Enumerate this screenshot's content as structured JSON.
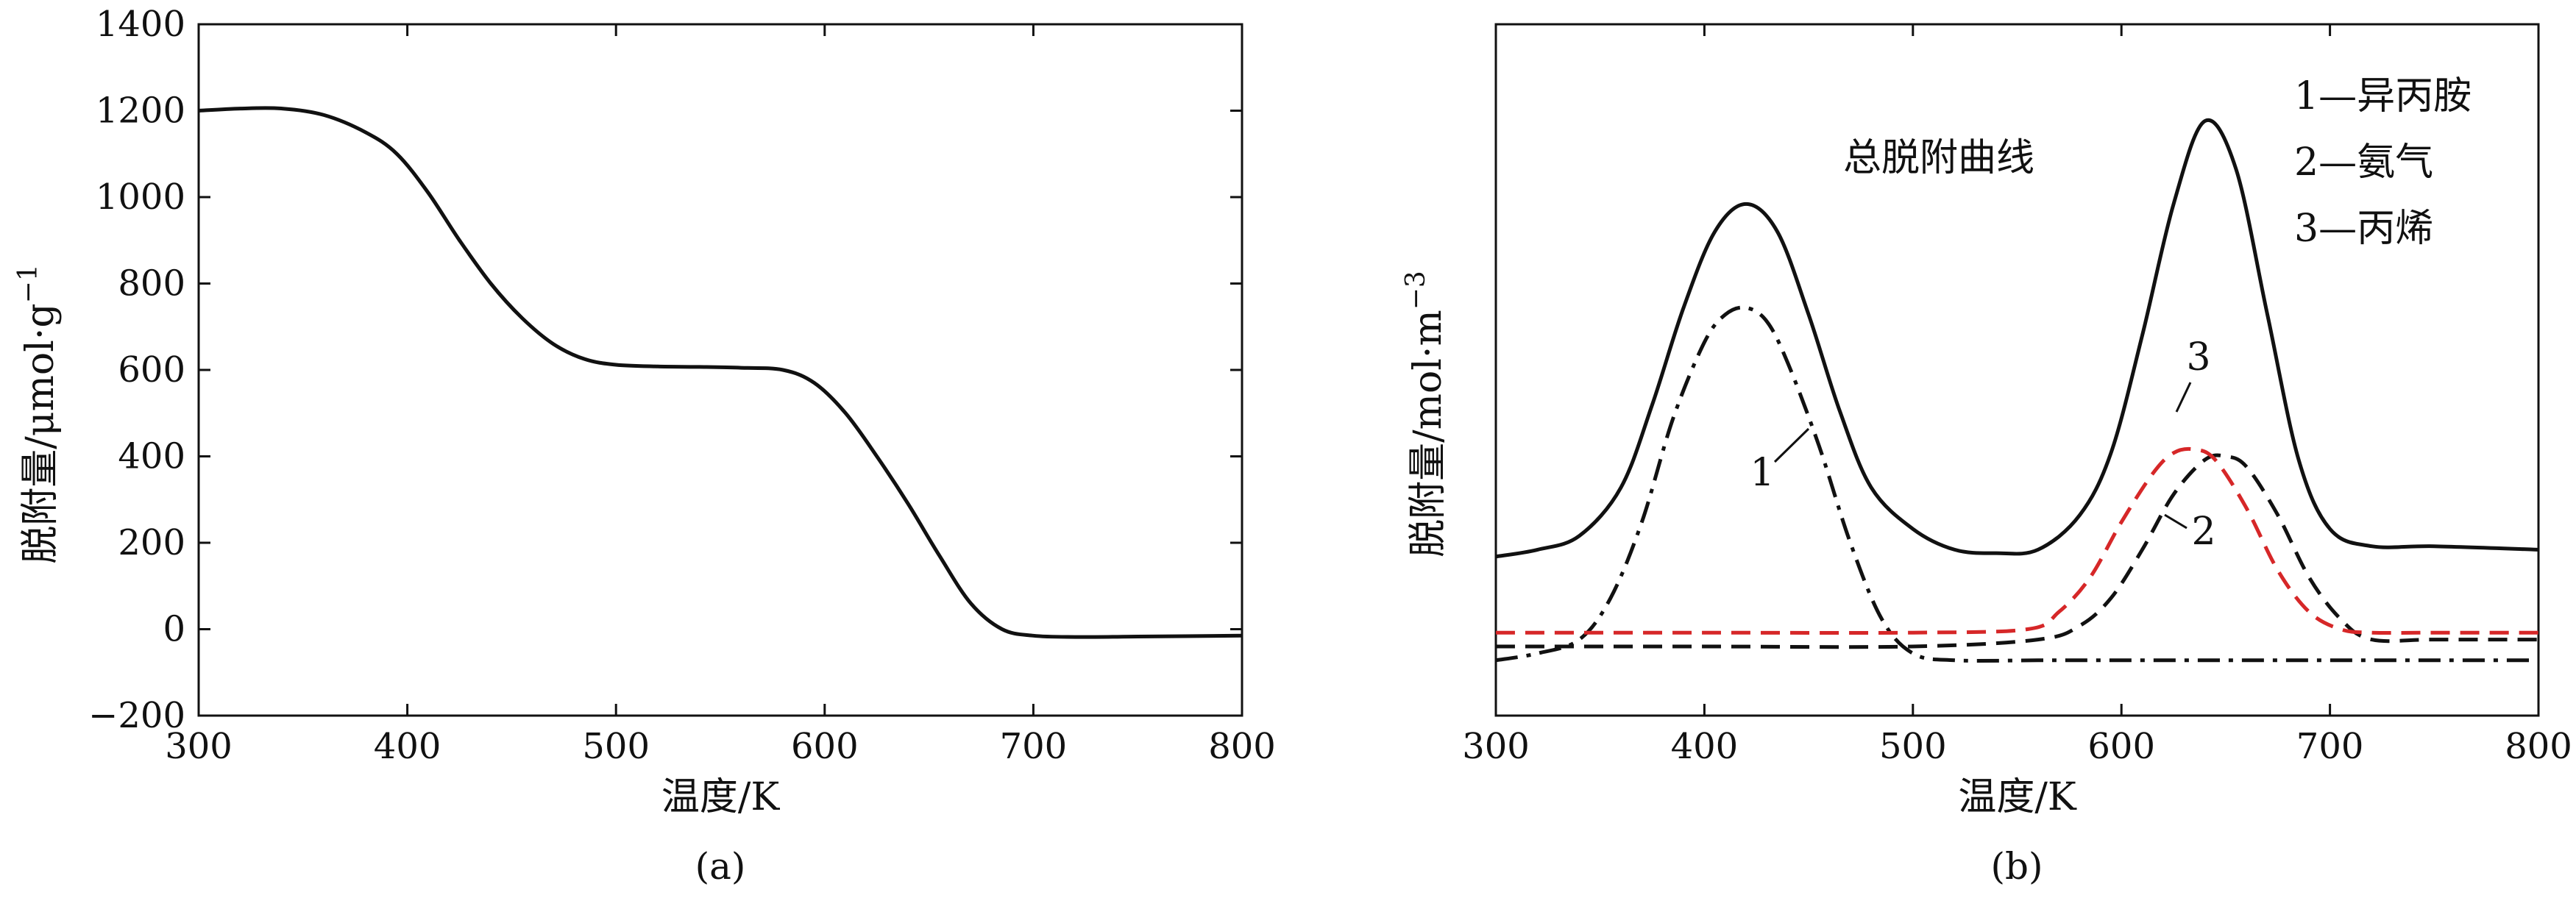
{
  "chart_data": [
    {
      "type": "line",
      "panel_label": "(a)",
      "xlabel": "温度/K",
      "ylabel": "脱附量/μmol·g",
      "ylabel_superscript": "−1",
      "xlim": [
        300,
        800
      ],
      "ylim": [
        -200,
        1400
      ],
      "xticks": [
        "300",
        "400",
        "500",
        "600",
        "700",
        "800"
      ],
      "yticks": [
        "−200",
        "0",
        "200",
        "400",
        "600",
        "800",
        "1000",
        "1200",
        "1400"
      ],
      "grid": false,
      "series": [
        {
          "color": "#111111",
          "style": "solid",
          "x": [
            300,
            320,
            340,
            360,
            380,
            395,
            410,
            425,
            440,
            455,
            470,
            485,
            500,
            520,
            540,
            560,
            580,
            595,
            610,
            625,
            640,
            655,
            670,
            685,
            700,
            720,
            750,
            800
          ],
          "y": [
            1200,
            1205,
            1205,
            1190,
            1150,
            1100,
            1010,
            900,
            800,
            720,
            660,
            625,
            612,
            608,
            607,
            605,
            600,
            570,
            500,
            400,
            290,
            170,
            60,
            0,
            -15,
            -18,
            -17,
            -15
          ]
        }
      ]
    },
    {
      "type": "line",
      "panel_label": "(b)",
      "xlabel": "温度/K",
      "ylabel": "脱附量/mol·m",
      "ylabel_superscript": "−3",
      "xlim": [
        300,
        800
      ],
      "ylim": [
        0,
        1.0
      ],
      "xticks": [
        "300",
        "400",
        "500",
        "600",
        "700",
        "800"
      ],
      "grid": false,
      "legend_position": "top-right",
      "legend": [
        "1—异丙胺",
        "2—氨气",
        "3—丙烯"
      ],
      "annotations": [
        "总脱附曲线",
        "1",
        "2",
        "3"
      ],
      "series": [
        {
          "label": "总脱附曲线",
          "color": "#111111",
          "style": "solid",
          "x": [
            300,
            320,
            340,
            360,
            375,
            390,
            405,
            420,
            435,
            450,
            465,
            480,
            500,
            520,
            540,
            560,
            580,
            595,
            610,
            625,
            640,
            655,
            670,
            685,
            700,
            720,
            750,
            800
          ],
          "y": [
            0.23,
            0.24,
            0.26,
            0.33,
            0.45,
            0.59,
            0.7,
            0.74,
            0.7,
            0.58,
            0.44,
            0.33,
            0.27,
            0.24,
            0.235,
            0.24,
            0.29,
            0.38,
            0.55,
            0.74,
            0.86,
            0.79,
            0.58,
            0.37,
            0.27,
            0.245,
            0.245,
            0.24
          ]
        },
        {
          "label": "1",
          "color": "#111111",
          "style": "dash-dot",
          "x": [
            300,
            320,
            340,
            355,
            370,
            385,
            400,
            410,
            420,
            430,
            440,
            455,
            470,
            485,
            500,
            520,
            560,
            600,
            650,
            700,
            750,
            800
          ],
          "y": [
            0.08,
            0.09,
            0.11,
            0.17,
            0.28,
            0.43,
            0.54,
            0.58,
            0.59,
            0.57,
            0.51,
            0.39,
            0.25,
            0.14,
            0.09,
            0.08,
            0.08,
            0.08,
            0.08,
            0.08,
            0.08,
            0.08
          ]
        },
        {
          "label": "2",
          "color": "#111111",
          "style": "dashed",
          "x": [
            300,
            400,
            500,
            560,
            580,
            595,
            610,
            625,
            640,
            650,
            660,
            675,
            690,
            705,
            720,
            750,
            800
          ],
          "y": [
            0.1,
            0.1,
            0.1,
            0.11,
            0.13,
            0.17,
            0.24,
            0.32,
            0.37,
            0.375,
            0.36,
            0.29,
            0.2,
            0.14,
            0.11,
            0.11,
            0.11
          ]
        },
        {
          "label": "3",
          "color": "#d62728",
          "style": "dashed",
          "x": [
            300,
            400,
            500,
            555,
            570,
            585,
            600,
            615,
            625,
            635,
            645,
            660,
            675,
            690,
            705,
            720,
            750,
            800
          ],
          "y": [
            0.12,
            0.12,
            0.12,
            0.125,
            0.15,
            0.2,
            0.28,
            0.35,
            0.38,
            0.385,
            0.37,
            0.3,
            0.21,
            0.15,
            0.125,
            0.12,
            0.12,
            0.12
          ]
        }
      ]
    }
  ]
}
